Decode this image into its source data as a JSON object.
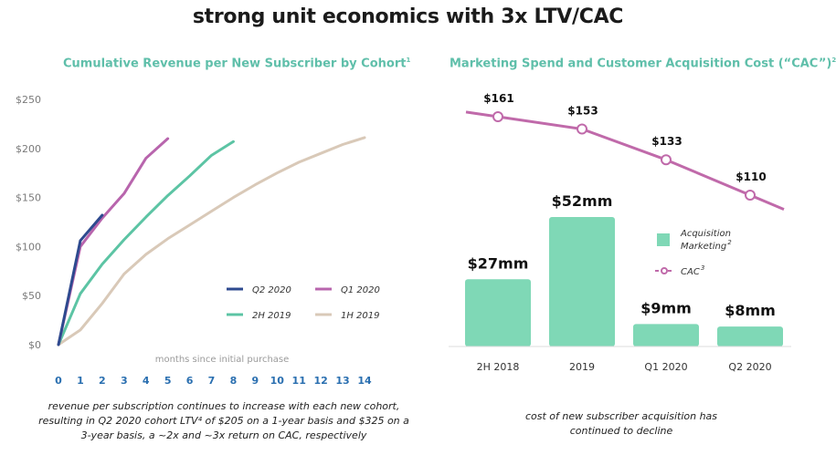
{
  "page": {
    "title": "strong unit economics with 3x LTV/CAC",
    "left_caption": [
      "revenue per subscription continues to increase with each new cohort,",
      "resulting in Q2 2020 cohort LTV⁴ of $205 on a 1-year basis and $325 on a",
      "3-year basis, a ~2x and ~3x return on CAC, respectively"
    ],
    "right_caption": [
      "cost of new subscriber acquisition has",
      "continued to decline"
    ]
  },
  "colors": {
    "title_teal": "#5fbfaa",
    "q2_2020": "#2e4a8f",
    "q1_2020": "#b865ad",
    "h2_2019": "#5cc4a4",
    "h1_2019": "#d9c9b8",
    "bar": "#7fd8b6",
    "cac_line": "#c06aaa",
    "tick_x": "#2a6fb0",
    "tick_y": "#7a7a7a"
  },
  "chart_data": [
    {
      "type": "line",
      "title": "Cumulative Revenue per New Subscriber by Cohort",
      "title_sup": "1",
      "xlabel": "months since initial purchase",
      "ylabel": "",
      "xlim": [
        0,
        14
      ],
      "ylim": [
        0,
        250
      ],
      "x_ticks": [
        "0",
        "1",
        "2",
        "3",
        "4",
        "5",
        "6",
        "7",
        "8",
        "9",
        "10",
        "11",
        "12",
        "13",
        "14"
      ],
      "y_ticks": [
        {
          "value": 0,
          "label": "$0"
        },
        {
          "value": 50,
          "label": "$50"
        },
        {
          "value": 100,
          "label": "$100"
        },
        {
          "value": 150,
          "label": "$150"
        },
        {
          "value": 200,
          "label": "$200"
        },
        {
          "value": 250,
          "label": "$250"
        }
      ],
      "grid": false,
      "legend_position": "bottom-right",
      "series": [
        {
          "name": "Q2 2020",
          "color": "#2e4a8f",
          "x": [
            0,
            1,
            2
          ],
          "y": [
            0,
            106,
            132
          ]
        },
        {
          "name": "Q1 2020",
          "color": "#b865ad",
          "x": [
            0,
            1,
            2,
            3,
            4,
            5
          ],
          "y": [
            0,
            100,
            129,
            154,
            190,
            210
          ]
        },
        {
          "name": "2H 2019",
          "color": "#5cc4a4",
          "x": [
            0,
            1,
            2,
            3,
            4,
            5,
            6,
            7,
            8
          ],
          "y": [
            0,
            52,
            82,
            107,
            130,
            152,
            172,
            193,
            207
          ]
        },
        {
          "name": "1H 2019",
          "color": "#d9c9b8",
          "x": [
            0,
            1,
            2,
            3,
            4,
            5,
            6,
            7,
            8,
            9,
            10,
            11,
            12,
            13,
            14
          ],
          "y": [
            0,
            15,
            42,
            72,
            92,
            108,
            122,
            136,
            150,
            163,
            175,
            186,
            195,
            204,
            211
          ]
        }
      ]
    },
    {
      "type": "bar",
      "title": "Marketing Spend and Customer Acquisition Cost (“CAC”)",
      "title_sup": "2",
      "categories": [
        "2H 2018",
        "2019",
        "Q1 2020",
        "Q2 2020"
      ],
      "series": [
        {
          "name": "Acquisition Marketing",
          "name_sup": "2",
          "kind": "bar",
          "color": "#7fd8b6",
          "values": [
            27,
            52,
            9,
            8
          ],
          "labels": [
            "$27mm",
            "$52mm",
            "$9mm",
            "$8mm"
          ]
        },
        {
          "name": "CAC",
          "name_sup": "3",
          "kind": "line",
          "color": "#c06aaa",
          "values": [
            161,
            153,
            133,
            110
          ],
          "labels": [
            "$161",
            "$153",
            "$133",
            "$110"
          ]
        }
      ],
      "ylim_bar": [
        0,
        60
      ],
      "ylim_line": [
        0,
        180
      ],
      "legend_position": "right",
      "grid": false
    }
  ]
}
